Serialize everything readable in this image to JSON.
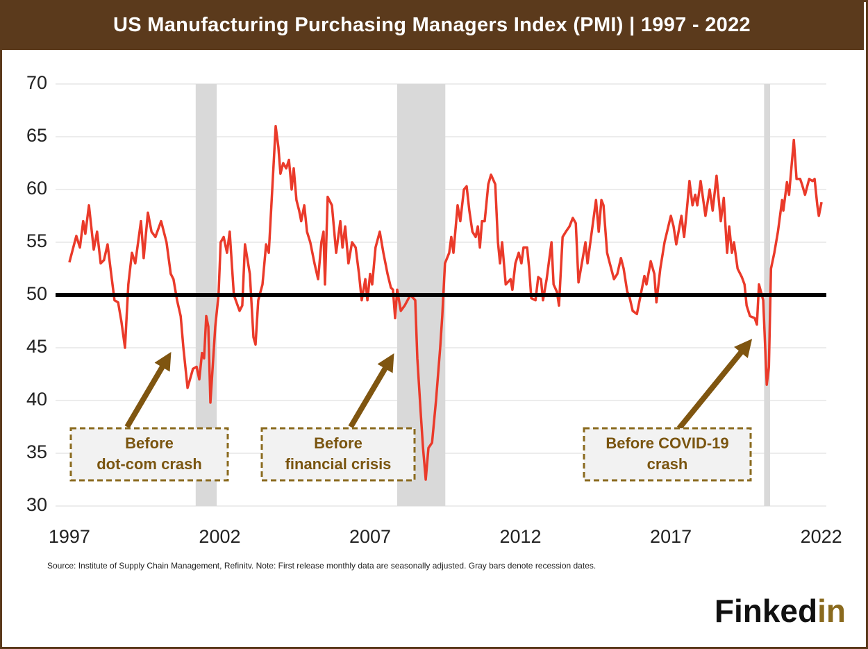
{
  "chart_data": {
    "type": "line",
    "title": "US Manufacturing Purchasing Managers Index (PMI) | 1997 - 2022",
    "source": "Source: Institute of Supply Chain Management, Refinitv.  Note: First release monthly data are seasonally adjusted. Gray bars denote recession dates.",
    "logo": [
      "Finked",
      "in"
    ],
    "color": "#ea3a2a",
    "grid": true,
    "reference_line": 50,
    "shaded_ranges": [
      [
        2001.2,
        2001.9
      ],
      [
        2007.9,
        2009.5
      ],
      [
        2020.1,
        2020.3
      ]
    ],
    "annotations": [
      {
        "lines": [
          "Before",
          "dot-com crash"
        ]
      },
      {
        "lines": [
          "Before",
          "financial crisis"
        ]
      },
      {
        "lines": [
          "Before COVID-19",
          "crash"
        ]
      }
    ],
    "xlim": [
      1996.54,
      2022.17
    ],
    "xticks": [
      1997,
      2002,
      2007,
      2012,
      2017,
      2022
    ],
    "ylim": [
      30,
      70
    ],
    "yticks": [
      30,
      35,
      40,
      45,
      50,
      55,
      60,
      65,
      70
    ],
    "x": [
      1997.0,
      1997.23,
      1997.35,
      1997.46,
      1997.53,
      1997.65,
      1997.81,
      1997.92,
      1998.04,
      1998.15,
      1998.27,
      1998.39,
      1998.5,
      1998.62,
      1998.73,
      1998.85,
      1998.96,
      1999.08,
      1999.19,
      1999.38,
      1999.47,
      1999.61,
      1999.73,
      1999.86,
      2000.05,
      2000.23,
      2000.37,
      2000.46,
      2000.58,
      2000.7,
      2000.79,
      2000.93,
      2001.11,
      2001.23,
      2001.32,
      2001.41,
      2001.48,
      2001.55,
      2001.62,
      2001.69,
      2001.85,
      2001.96,
      2002.03,
      2002.13,
      2002.24,
      2002.33,
      2002.47,
      2002.66,
      2002.75,
      2002.84,
      2003.0,
      2003.12,
      2003.19,
      2003.28,
      2003.42,
      2003.54,
      2003.63,
      2003.86,
      2003.95,
      2004.02,
      2004.11,
      2004.21,
      2004.3,
      2004.39,
      2004.46,
      2004.55,
      2004.64,
      2004.71,
      2004.81,
      2004.9,
      2005.01,
      2005.15,
      2005.27,
      2005.38,
      2005.45,
      2005.5,
      2005.59,
      2005.73,
      2005.87,
      2006.01,
      2006.08,
      2006.17,
      2006.28,
      2006.4,
      2006.52,
      2006.63,
      2006.72,
      2006.84,
      2006.91,
      2007.0,
      2007.07,
      2007.18,
      2007.32,
      2007.44,
      2007.58,
      2007.69,
      2007.76,
      2007.83,
      2007.9,
      2008.02,
      2008.15,
      2008.34,
      2008.5,
      2008.57,
      2008.69,
      2008.76,
      2008.85,
      2008.94,
      2009.06,
      2009.19,
      2009.33,
      2009.4,
      2009.49,
      2009.63,
      2009.7,
      2009.77,
      2009.91,
      2010.0,
      2010.12,
      2010.21,
      2010.3,
      2010.4,
      2010.51,
      2010.58,
      2010.65,
      2010.72,
      2010.81,
      2010.93,
      2011.02,
      2011.16,
      2011.25,
      2011.32,
      2011.39,
      2011.51,
      2011.67,
      2011.73,
      2011.83,
      2011.94,
      2012.03,
      2012.1,
      2012.22,
      2012.29,
      2012.36,
      2012.5,
      2012.59,
      2012.68,
      2012.75,
      2012.87,
      2013.03,
      2013.1,
      2013.21,
      2013.28,
      2013.4,
      2013.51,
      2013.63,
      2013.74,
      2013.84,
      2013.93,
      2014.04,
      2014.16,
      2014.23,
      2014.37,
      2014.51,
      2014.6,
      2014.69,
      2014.76,
      2014.88,
      2014.97,
      2015.11,
      2015.22,
      2015.34,
      2015.43,
      2015.55,
      2015.61,
      2015.73,
      2015.87,
      2016.01,
      2016.12,
      2016.19,
      2016.33,
      2016.45,
      2016.52,
      2016.65,
      2016.79,
      2017.0,
      2017.09,
      2017.18,
      2017.35,
      2017.44,
      2017.53,
      2017.62,
      2017.72,
      2017.81,
      2017.88,
      2017.99,
      2018.15,
      2018.29,
      2018.39,
      2018.52,
      2018.66,
      2018.76,
      2018.87,
      2018.94,
      2019.03,
      2019.1,
      2019.22,
      2019.36,
      2019.45,
      2019.52,
      2019.63,
      2019.79,
      2019.86,
      2019.93,
      2020.07,
      2020.19,
      2020.26,
      2020.33,
      2020.44,
      2020.56,
      2020.7,
      2020.74,
      2020.86,
      2020.93,
      2021.09,
      2021.18,
      2021.3,
      2021.36,
      2021.46,
      2021.6,
      2021.71,
      2021.78,
      2021.87,
      2021.92,
      2022.01
    ],
    "values": [
      53.1,
      55.6,
      54.5,
      57,
      55.8,
      58.5,
      54.3,
      56,
      53,
      53.3,
      54.8,
      52,
      49.5,
      49.3,
      47.5,
      45,
      51,
      54,
      53,
      57,
      53.5,
      57.8,
      56,
      55.5,
      57,
      55,
      52,
      51.5,
      49.5,
      48,
      45,
      41.2,
      43,
      43.2,
      42,
      44.5,
      44,
      48,
      47,
      39.8,
      47,
      50,
      55,
      55.5,
      54,
      56,
      50,
      48.5,
      49,
      54.8,
      52,
      46,
      45.3,
      49.5,
      51,
      54.8,
      54,
      66,
      64,
      61.5,
      62.5,
      62,
      62.8,
      60,
      62,
      59,
      58,
      57,
      58.5,
      56,
      55,
      53,
      51.5,
      55,
      56,
      51,
      59.3,
      58.5,
      54,
      57,
      54.5,
      56.5,
      53,
      55,
      54.5,
      52,
      49.5,
      51.5,
      49.5,
      52,
      51,
      54.5,
      56,
      54,
      52,
      50.7,
      50.5,
      47.8,
      50.5,
      48.5,
      49,
      50,
      49.5,
      44,
      38.5,
      35.5,
      32.5,
      35.5,
      36,
      40,
      45,
      48,
      53,
      54,
      55.5,
      54,
      58.5,
      57,
      60,
      60.3,
      58,
      56,
      55.5,
      56.5,
      54.5,
      57,
      57,
      60.5,
      61.4,
      60.5,
      55,
      53,
      55,
      51,
      51.5,
      50.5,
      53,
      54,
      53,
      54.5,
      54.5,
      52.5,
      49.7,
      49.5,
      51.7,
      51.5,
      49.5,
      51.5,
      55,
      51,
      50.3,
      49,
      55.5,
      56,
      56.5,
      57.3,
      56.8,
      51.2,
      53,
      55,
      53,
      56,
      59,
      56,
      59,
      58.5,
      54,
      53,
      51.5,
      52,
      53.5,
      52.5,
      50.3,
      50,
      48.5,
      48.2,
      50.2,
      51.8,
      51,
      53.2,
      52,
      49.3,
      52.5,
      55,
      57.5,
      56.5,
      54.8,
      57.5,
      55.5,
      58,
      60.8,
      58.5,
      59.5,
      58.5,
      60.8,
      57.5,
      60,
      58,
      61.3,
      57,
      59.2,
      54,
      56.5,
      54,
      55,
      52.5,
      51.7,
      51,
      49,
      48,
      47.8,
      47.2,
      51,
      49.5,
      41.5,
      43.2,
      52.5,
      54,
      56,
      59,
      58,
      60.7,
      59.5,
      64.7,
      61,
      61,
      60.5,
      59.5,
      61,
      60.8,
      61,
      58.5,
      57.5,
      58.8
    ]
  }
}
